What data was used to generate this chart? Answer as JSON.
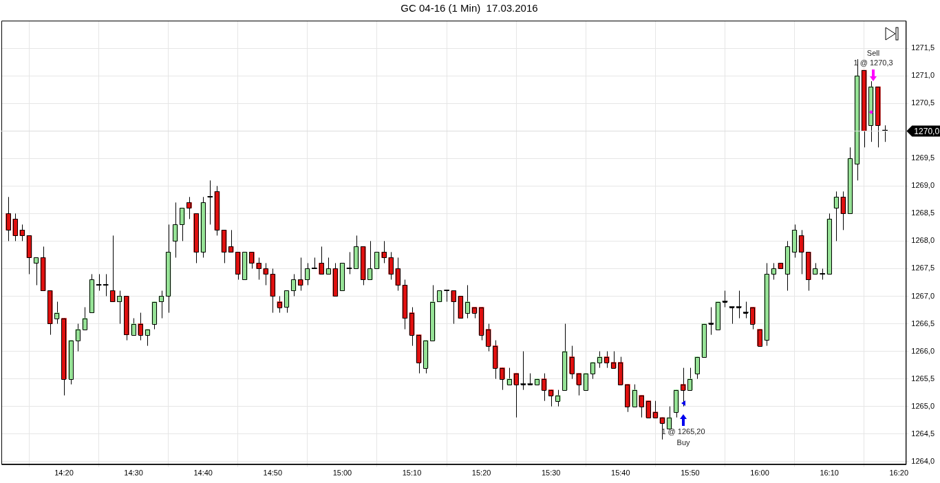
{
  "chart_data": {
    "type": "candlestick",
    "title": "GC 04-16 (1 Min)  17.03.2016",
    "x": [
      "2016-03-17T14:12",
      "2016-03-17T14:13",
      "2016-03-17T14:14",
      "2016-03-17T14:15",
      "2016-03-17T14:16",
      "2016-03-17T14:17",
      "2016-03-17T14:18",
      "2016-03-17T14:19",
      "2016-03-17T14:20",
      "2016-03-17T14:21",
      "2016-03-17T14:22",
      "2016-03-17T14:23",
      "2016-03-17T14:24",
      "2016-03-17T14:25",
      "2016-03-17T14:26",
      "2016-03-17T14:27",
      "2016-03-17T14:28",
      "2016-03-17T14:29",
      "2016-03-17T14:30",
      "2016-03-17T14:31",
      "2016-03-17T14:32",
      "2016-03-17T14:33",
      "2016-03-17T14:34",
      "2016-03-17T14:35",
      "2016-03-17T14:36",
      "2016-03-17T14:37",
      "2016-03-17T14:38",
      "2016-03-17T14:39",
      "2016-03-17T14:40",
      "2016-03-17T14:41",
      "2016-03-17T14:42",
      "2016-03-17T14:43",
      "2016-03-17T14:44",
      "2016-03-17T14:45",
      "2016-03-17T14:46",
      "2016-03-17T14:47",
      "2016-03-17T14:48",
      "2016-03-17T14:49",
      "2016-03-17T14:50",
      "2016-03-17T14:51",
      "2016-03-17T14:52",
      "2016-03-17T14:53",
      "2016-03-17T14:54",
      "2016-03-17T14:55",
      "2016-03-17T14:56",
      "2016-03-17T14:57",
      "2016-03-17T14:58",
      "2016-03-17T14:59",
      "2016-03-17T15:00",
      "2016-03-17T15:01",
      "2016-03-17T15:02",
      "2016-03-17T15:03",
      "2016-03-17T15:04",
      "2016-03-17T15:05",
      "2016-03-17T15:06",
      "2016-03-17T15:07",
      "2016-03-17T15:08",
      "2016-03-17T15:09",
      "2016-03-17T15:10",
      "2016-03-17T15:11",
      "2016-03-17T15:12",
      "2016-03-17T15:13",
      "2016-03-17T15:14",
      "2016-03-17T15:15",
      "2016-03-17T15:16",
      "2016-03-17T15:17",
      "2016-03-17T15:18",
      "2016-03-17T15:19",
      "2016-03-17T15:20",
      "2016-03-17T15:21",
      "2016-03-17T15:22",
      "2016-03-17T15:23",
      "2016-03-17T15:24",
      "2016-03-17T15:25",
      "2016-03-17T15:26",
      "2016-03-17T15:27",
      "2016-03-17T15:28",
      "2016-03-17T15:29",
      "2016-03-17T15:30",
      "2016-03-17T15:31",
      "2016-03-17T15:32",
      "2016-03-17T15:33",
      "2016-03-17T15:34",
      "2016-03-17T15:35",
      "2016-03-17T15:36",
      "2016-03-17T15:37",
      "2016-03-17T15:38",
      "2016-03-17T15:39",
      "2016-03-17T15:40",
      "2016-03-17T15:41",
      "2016-03-17T15:42",
      "2016-03-17T15:43",
      "2016-03-17T15:44",
      "2016-03-17T15:45",
      "2016-03-17T15:46",
      "2016-03-17T15:47",
      "2016-03-17T15:48",
      "2016-03-17T15:49",
      "2016-03-17T15:50",
      "2016-03-17T15:51",
      "2016-03-17T15:52",
      "2016-03-17T15:53",
      "2016-03-17T15:54",
      "2016-03-17T15:55",
      "2016-03-17T15:56",
      "2016-03-17T15:57",
      "2016-03-17T15:58",
      "2016-03-17T15:59",
      "2016-03-17T16:00",
      "2016-03-17T16:01",
      "2016-03-17T16:02",
      "2016-03-17T16:03",
      "2016-03-17T16:04",
      "2016-03-17T16:05",
      "2016-03-17T16:06",
      "2016-03-17T16:07",
      "2016-03-17T16:08",
      "2016-03-17T16:09",
      "2016-03-17T16:10",
      "2016-03-17T16:11",
      "2016-03-17T16:12",
      "2016-03-17T16:13",
      "2016-03-17T16:14",
      "2016-03-17T16:15",
      "2016-03-17T16:16",
      "2016-03-17T16:17",
      "2016-03-17T16:18"
    ],
    "ohlc": [
      [
        1268.5,
        1268.8,
        1268.0,
        1268.2
      ],
      [
        1268.4,
        1268.5,
        1268.0,
        1268.1
      ],
      [
        1268.2,
        1268.3,
        1268.0,
        1268.1
      ],
      [
        1268.1,
        1268.1,
        1267.4,
        1267.7
      ],
      [
        1267.6,
        1267.7,
        1267.2,
        1267.7
      ],
      [
        1267.7,
        1267.9,
        1267.1,
        1267.1
      ],
      [
        1267.1,
        1267.1,
        1266.3,
        1266.5
      ],
      [
        1266.6,
        1266.9,
        1266.5,
        1266.7
      ],
      [
        1266.6,
        1266.6,
        1265.2,
        1265.5
      ],
      [
        1265.5,
        1266.2,
        1265.4,
        1266.2
      ],
      [
        1266.2,
        1266.5,
        1266.0,
        1266.4
      ],
      [
        1266.4,
        1266.8,
        1266.4,
        1266.6
      ],
      [
        1266.7,
        1267.4,
        1266.7,
        1267.3
      ],
      [
        1267.2,
        1267.4,
        1267.1,
        1267.2
      ],
      [
        1267.2,
        1267.4,
        1267.0,
        1267.2
      ],
      [
        1267.1,
        1268.1,
        1266.9,
        1266.9
      ],
      [
        1266.9,
        1267.1,
        1266.5,
        1267.0
      ],
      [
        1267.0,
        1267.0,
        1266.2,
        1266.3
      ],
      [
        1266.3,
        1266.6,
        1266.3,
        1266.5
      ],
      [
        1266.5,
        1266.7,
        1266.2,
        1266.3
      ],
      [
        1266.3,
        1266.4,
        1266.1,
        1266.4
      ],
      [
        1266.5,
        1266.9,
        1266.4,
        1266.9
      ],
      [
        1266.9,
        1267.1,
        1266.6,
        1267.0
      ],
      [
        1267.0,
        1268.3,
        1266.7,
        1267.8
      ],
      [
        1268.0,
        1268.7,
        1267.7,
        1268.3
      ],
      [
        1268.3,
        1268.6,
        1268.0,
        1268.6
      ],
      [
        1268.7,
        1268.8,
        1268.4,
        1268.6
      ],
      [
        1268.5,
        1268.5,
        1267.6,
        1267.8
      ],
      [
        1267.8,
        1268.8,
        1267.7,
        1268.7
      ],
      [
        1268.8,
        1269.1,
        1268.3,
        1268.8
      ],
      [
        1268.9,
        1269.0,
        1268.1,
        1268.2
      ],
      [
        1268.2,
        1268.2,
        1267.6,
        1267.8
      ],
      [
        1267.9,
        1268.2,
        1267.8,
        1267.8
      ],
      [
        1267.8,
        1267.8,
        1267.3,
        1267.4
      ],
      [
        1267.3,
        1267.8,
        1267.3,
        1267.8
      ],
      [
        1267.8,
        1267.8,
        1267.5,
        1267.6
      ],
      [
        1267.6,
        1267.7,
        1267.3,
        1267.5
      ],
      [
        1267.5,
        1267.6,
        1267.2,
        1267.4
      ],
      [
        1267.4,
        1267.5,
        1266.7,
        1267.0
      ],
      [
        1266.9,
        1267.0,
        1266.7,
        1266.8
      ],
      [
        1266.8,
        1267.1,
        1266.7,
        1267.1
      ],
      [
        1267.1,
        1267.4,
        1267.0,
        1267.3
      ],
      [
        1267.3,
        1267.7,
        1267.1,
        1267.2
      ],
      [
        1267.3,
        1267.6,
        1267.2,
        1267.5
      ],
      [
        1267.5,
        1267.7,
        1267.5,
        1267.5
      ],
      [
        1267.6,
        1267.9,
        1267.4,
        1267.4
      ],
      [
        1267.4,
        1267.7,
        1267.4,
        1267.5
      ],
      [
        1267.5,
        1267.6,
        1267.0,
        1267.0
      ],
      [
        1267.1,
        1267.6,
        1267.1,
        1267.6
      ],
      [
        1267.5,
        1267.8,
        1267.4,
        1267.5
      ],
      [
        1267.5,
        1268.1,
        1267.5,
        1267.9
      ],
      [
        1267.9,
        1267.9,
        1267.2,
        1267.3
      ],
      [
        1267.3,
        1268.0,
        1267.3,
        1267.5
      ],
      [
        1267.5,
        1267.8,
        1267.5,
        1267.8
      ],
      [
        1267.8,
        1268.0,
        1267.6,
        1267.7
      ],
      [
        1267.7,
        1267.8,
        1267.3,
        1267.4
      ],
      [
        1267.5,
        1267.7,
        1267.1,
        1267.2
      ],
      [
        1267.2,
        1267.3,
        1266.4,
        1266.6
      ],
      [
        1266.7,
        1266.8,
        1266.1,
        1266.3
      ],
      [
        1266.3,
        1266.3,
        1265.6,
        1265.8
      ],
      [
        1265.7,
        1266.2,
        1265.6,
        1266.2
      ],
      [
        1266.2,
        1267.2,
        1266.2,
        1266.9
      ],
      [
        1266.9,
        1267.1,
        1266.9,
        1267.1
      ],
      [
        1267.1,
        1267.1,
        1266.9,
        1267.1
      ],
      [
        1267.1,
        1267.1,
        1266.5,
        1266.9
      ],
      [
        1267.0,
        1267.0,
        1266.6,
        1266.6
      ],
      [
        1266.7,
        1267.2,
        1266.6,
        1266.9
      ],
      [
        1266.8,
        1266.8,
        1266.6,
        1266.7
      ],
      [
        1266.8,
        1266.8,
        1266.2,
        1266.3
      ],
      [
        1266.4,
        1266.5,
        1266.0,
        1266.1
      ],
      [
        1266.1,
        1266.2,
        1265.5,
        1265.7
      ],
      [
        1265.7,
        1265.7,
        1265.3,
        1265.5
      ],
      [
        1265.4,
        1265.7,
        1265.4,
        1265.5
      ],
      [
        1265.6,
        1265.6,
        1264.8,
        1265.4
      ],
      [
        1265.4,
        1266.0,
        1265.3,
        1265.4
      ],
      [
        1265.4,
        1265.6,
        1265.4,
        1265.4
      ],
      [
        1265.4,
        1265.5,
        1265.4,
        1265.5
      ],
      [
        1265.5,
        1265.6,
        1265.1,
        1265.3
      ],
      [
        1265.3,
        1265.3,
        1265.0,
        1265.2
      ],
      [
        1265.1,
        1265.3,
        1265.0,
        1265.2
      ],
      [
        1265.3,
        1266.5,
        1265.3,
        1266.0
      ],
      [
        1265.9,
        1266.1,
        1265.5,
        1265.6
      ],
      [
        1265.6,
        1265.6,
        1265.2,
        1265.4
      ],
      [
        1265.3,
        1265.6,
        1265.3,
        1265.6
      ],
      [
        1265.6,
        1265.8,
        1265.5,
        1265.8
      ],
      [
        1265.8,
        1266.0,
        1265.7,
        1265.9
      ],
      [
        1265.9,
        1266.0,
        1265.7,
        1265.8
      ],
      [
        1265.8,
        1266.0,
        1265.7,
        1265.7
      ],
      [
        1265.8,
        1265.9,
        1265.4,
        1265.4
      ],
      [
        1265.4,
        1265.4,
        1264.9,
        1265.0
      ],
      [
        1265.0,
        1265.4,
        1265.0,
        1265.3
      ],
      [
        1265.2,
        1265.2,
        1264.8,
        1265.0
      ],
      [
        1265.1,
        1265.1,
        1264.8,
        1264.8
      ],
      [
        1264.9,
        1265.1,
        1264.8,
        1264.8
      ],
      [
        1264.8,
        1264.8,
        1264.4,
        1264.7
      ],
      [
        1264.6,
        1265.0,
        1264.6,
        1264.8
      ],
      [
        1264.9,
        1265.3,
        1264.8,
        1265.3
      ],
      [
        1265.4,
        1265.7,
        1265.0,
        1265.3
      ],
      [
        1265.3,
        1265.7,
        1265.3,
        1265.5
      ],
      [
        1265.6,
        1265.9,
        1265.5,
        1265.9
      ],
      [
        1265.9,
        1266.5,
        1265.9,
        1266.5
      ],
      [
        1266.5,
        1266.8,
        1266.3,
        1266.5
      ],
      [
        1266.4,
        1266.9,
        1266.4,
        1266.9
      ],
      [
        1266.9,
        1267.1,
        1266.8,
        1266.9
      ],
      [
        1266.8,
        1266.8,
        1266.5,
        1266.8
      ],
      [
        1266.8,
        1267.1,
        1266.6,
        1266.8
      ],
      [
        1266.7,
        1266.9,
        1266.6,
        1266.7
      ],
      [
        1266.8,
        1266.8,
        1266.4,
        1266.5
      ],
      [
        1266.4,
        1266.4,
        1266.1,
        1266.1
      ],
      [
        1266.2,
        1267.6,
        1266.1,
        1267.4
      ],
      [
        1267.4,
        1267.6,
        1267.3,
        1267.5
      ],
      [
        1267.6,
        1267.6,
        1267.5,
        1267.5
      ],
      [
        1267.4,
        1268.0,
        1267.1,
        1267.9
      ],
      [
        1267.8,
        1268.3,
        1267.7,
        1268.2
      ],
      [
        1268.1,
        1268.2,
        1267.4,
        1267.8
      ],
      [
        1267.8,
        1267.8,
        1267.1,
        1267.3
      ],
      [
        1267.4,
        1267.6,
        1267.4,
        1267.5
      ],
      [
        1267.4,
        1267.5,
        1267.3,
        1267.4
      ],
      [
        1267.4,
        1268.5,
        1267.4,
        1268.4
      ],
      [
        1268.6,
        1268.9,
        1268.0,
        1268.8
      ],
      [
        1268.8,
        1268.9,
        1268.2,
        1268.5
      ],
      [
        1268.5,
        1269.7,
        1268.5,
        1269.5
      ],
      [
        1269.4,
        1271.3,
        1269.1,
        1271.0
      ],
      [
        1271.1,
        1271.1,
        1269.7,
        1270.0
      ],
      [
        1270.1,
        1270.9,
        1269.8,
        1270.8
      ],
      [
        1270.8,
        1270.8,
        1269.7,
        1270.1
      ],
      [
        1270.0,
        1270.1,
        1269.8,
        1270.0
      ]
    ],
    "colors": [
      "#e0100f",
      "#e0100f",
      "#e0100f",
      "#e0100f",
      "#96e396",
      "#e0100f",
      "#e0100f",
      "#96e396",
      "#e0100f",
      "#96e396",
      "#96e396",
      "#96e396",
      "#96e396",
      "#000000",
      "#000000",
      "#e0100f",
      "#96e396",
      "#e0100f",
      "#96e396",
      "#e0100f",
      "#96e396",
      "#96e396",
      "#96e396",
      "#96e396",
      "#96e396",
      "#96e396",
      "#e0100f",
      "#e0100f",
      "#96e396",
      "#000000",
      "#e0100f",
      "#e0100f",
      "#e0100f",
      "#e0100f",
      "#96e396",
      "#e0100f",
      "#e0100f",
      "#e0100f",
      "#e0100f",
      "#e0100f",
      "#96e396",
      "#96e396",
      "#e0100f",
      "#96e396",
      "#000000",
      "#e0100f",
      "#96e396",
      "#e0100f",
      "#96e396",
      "#000000",
      "#96e396",
      "#e0100f",
      "#96e396",
      "#96e396",
      "#e0100f",
      "#e0100f",
      "#e0100f",
      "#e0100f",
      "#e0100f",
      "#e0100f",
      "#96e396",
      "#96e396",
      "#96e396",
      "#000000",
      "#e0100f",
      "#e0100f",
      "#96e396",
      "#e0100f",
      "#e0100f",
      "#e0100f",
      "#e0100f",
      "#e0100f",
      "#96e396",
      "#e0100f",
      "#000000",
      "#000000",
      "#96e396",
      "#e0100f",
      "#e0100f",
      "#96e396",
      "#96e396",
      "#e0100f",
      "#e0100f",
      "#96e396",
      "#96e396",
      "#96e396",
      "#e0100f",
      "#e0100f",
      "#e0100f",
      "#e0100f",
      "#96e396",
      "#e0100f",
      "#e0100f",
      "#e0100f",
      "#e0100f",
      "#96e396",
      "#96e396",
      "#e0100f",
      "#96e396",
      "#96e396",
      "#96e396",
      "#000000",
      "#96e396",
      "#000000",
      "#000000",
      "#000000",
      "#000000",
      "#e0100f",
      "#e0100f",
      "#96e396",
      "#96e396",
      "#e0100f",
      "#96e396",
      "#96e396",
      "#e0100f",
      "#e0100f",
      "#96e396",
      "#000000",
      "#96e396",
      "#96e396",
      "#e0100f",
      "#96e396",
      "#96e396",
      "#e0100f",
      "#96e396",
      "#e0100f",
      "#000000"
    ],
    "xlim": [
      "2016-03-17T14:11",
      "2016-03-17T16:21"
    ],
    "xticks": [
      {
        "value": "2016-03-17T14:20",
        "label": "14:20"
      },
      {
        "value": "2016-03-17T14:30",
        "label": "14:30"
      },
      {
        "value": "2016-03-17T14:40",
        "label": "14:40"
      },
      {
        "value": "2016-03-17T14:50",
        "label": "14:50"
      },
      {
        "value": "2016-03-17T15:00",
        "label": "15:00"
      },
      {
        "value": "2016-03-17T15:10",
        "label": "15:10"
      },
      {
        "value": "2016-03-17T15:20",
        "label": "15:20"
      },
      {
        "value": "2016-03-17T15:30",
        "label": "15:30"
      },
      {
        "value": "2016-03-17T15:40",
        "label": "15:40"
      },
      {
        "value": "2016-03-17T15:50",
        "label": "15:50"
      },
      {
        "value": "2016-03-17T16:00",
        "label": "16:00"
      },
      {
        "value": "2016-03-17T16:10",
        "label": "16:10"
      },
      {
        "value": "2016-03-17T16:20",
        "label": "16:20"
      }
    ],
    "ylim": [
      1263.95,
      1272.0
    ],
    "yticks": [
      {
        "value": 1264.0,
        "label": "1264,0"
      },
      {
        "value": 1264.5,
        "label": "1264,5"
      },
      {
        "value": 1265.0,
        "label": "1265,0"
      },
      {
        "value": 1265.5,
        "label": "1265,5"
      },
      {
        "value": 1266.0,
        "label": "1266,0"
      },
      {
        "value": 1266.5,
        "label": "1266,5"
      },
      {
        "value": 1267.0,
        "label": "1267,0"
      },
      {
        "value": 1267.5,
        "label": "1267,5"
      },
      {
        "value": 1268.0,
        "label": "1268,0"
      },
      {
        "value": 1268.5,
        "label": "1268,5"
      },
      {
        "value": 1269.0,
        "label": "1269,0"
      },
      {
        "value": 1269.5,
        "label": "1269,5"
      },
      {
        "value": 1270.5,
        "label": "1270,5"
      },
      {
        "value": 1271.0,
        "label": "1271,0"
      },
      {
        "value": 1271.5,
        "label": "1271,5"
      }
    ],
    "ref_lines": [
      {
        "axis": "y",
        "value": 1270.0,
        "label": "1270,0",
        "color": "#dcdcdc"
      }
    ],
    "annotations": [
      "Sell",
      "1 @ 1270,3",
      "1 @ 1265,20",
      "Buy"
    ],
    "grid": true
  }
}
